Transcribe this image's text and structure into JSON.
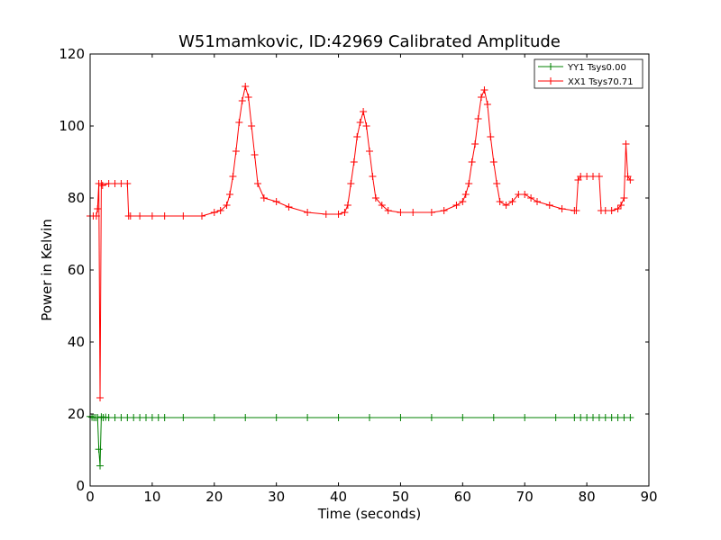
{
  "chart_data": {
    "type": "line",
    "title": "W51mamkovic, ID:42969 Calibrated Amplitude",
    "xlabel": "Time (seconds)",
    "ylabel": "Power in Kelvin",
    "xlim": [
      0,
      90
    ],
    "ylim": [
      0,
      120
    ],
    "xticks": [
      0,
      10,
      20,
      30,
      40,
      50,
      60,
      70,
      80,
      90
    ],
    "yticks": [
      0,
      20,
      40,
      60,
      80,
      100,
      120
    ],
    "grid": false,
    "legend_position": "top-right",
    "marker": "plus",
    "series": [
      {
        "name": "YY1 Tsys0.00",
        "color": "#008000",
        "x": [
          0,
          0.3,
          0.6,
          0.9,
          1.2,
          1.4,
          1.6,
          1.8,
          2.1,
          2.5,
          3,
          4,
          5,
          6,
          7,
          8,
          9,
          10,
          11,
          12,
          15,
          20,
          25,
          30,
          35,
          40,
          45,
          50,
          55,
          60,
          65,
          70,
          75,
          78,
          79,
          80,
          81,
          82,
          83,
          84,
          85,
          86,
          87
        ],
        "values": [
          19.3,
          19.1,
          19.0,
          19.0,
          19.0,
          10.2,
          5.6,
          19.2,
          19.0,
          19.1,
          19.0,
          19.0,
          19.0,
          19.0,
          19.0,
          19.0,
          19.0,
          19.0,
          19.0,
          19.0,
          19.0,
          19.0,
          19.0,
          19.0,
          19.0,
          19.0,
          19.0,
          19.0,
          19.0,
          19.0,
          19.0,
          19.0,
          19.0,
          19.0,
          19.0,
          19.0,
          19.0,
          19.0,
          19.0,
          19.0,
          19.0,
          19.0,
          19.0
        ]
      },
      {
        "name": "XX1 Tsys70.71",
        "color": "#ff0000",
        "x": [
          0,
          0.5,
          1.0,
          1.2,
          1.4,
          1.6,
          1.8,
          2.0,
          3,
          4,
          5,
          6,
          6.2,
          6.5,
          8,
          10,
          12,
          15,
          18,
          20,
          21,
          22,
          22.5,
          23,
          23.5,
          24,
          24.5,
          25,
          25.5,
          26,
          26.5,
          27,
          28,
          30,
          32,
          35,
          38,
          40,
          41,
          41.5,
          42,
          42.5,
          43,
          43.5,
          44,
          44.5,
          45,
          45.5,
          46,
          47,
          48,
          50,
          52,
          55,
          57,
          59,
          60,
          60.5,
          61,
          61.5,
          62,
          62.5,
          63,
          63.5,
          64,
          64.5,
          65,
          65.5,
          66,
          67,
          68,
          69,
          70,
          71,
          72,
          74,
          76,
          78,
          78.3,
          78.6,
          79,
          80,
          81,
          82,
          82.3,
          83,
          84,
          85,
          85.5,
          86,
          86.3,
          86.6,
          87
        ],
        "values": [
          75,
          75,
          75,
          77,
          84,
          24.5,
          84,
          83.5,
          84,
          84,
          84,
          84,
          75,
          75,
          75,
          75,
          75,
          75,
          75,
          76,
          76.5,
          78,
          81,
          86,
          93,
          101,
          107,
          111,
          108,
          100,
          92,
          84,
          80,
          79,
          77.5,
          76,
          75.5,
          75.5,
          76,
          78,
          84,
          90,
          97,
          101,
          104,
          100,
          93,
          86,
          80,
          78,
          76.5,
          76,
          76,
          76,
          76.5,
          78,
          79,
          81,
          84,
          90,
          95,
          102,
          108,
          110,
          106,
          97,
          90,
          84,
          79,
          78,
          79,
          81,
          81,
          80,
          79,
          78,
          77,
          76.5,
          76.5,
          85,
          86,
          86,
          86,
          86,
          76.5,
          76.5,
          76.5,
          77,
          78,
          80,
          95,
          86,
          85
        ]
      }
    ]
  }
}
